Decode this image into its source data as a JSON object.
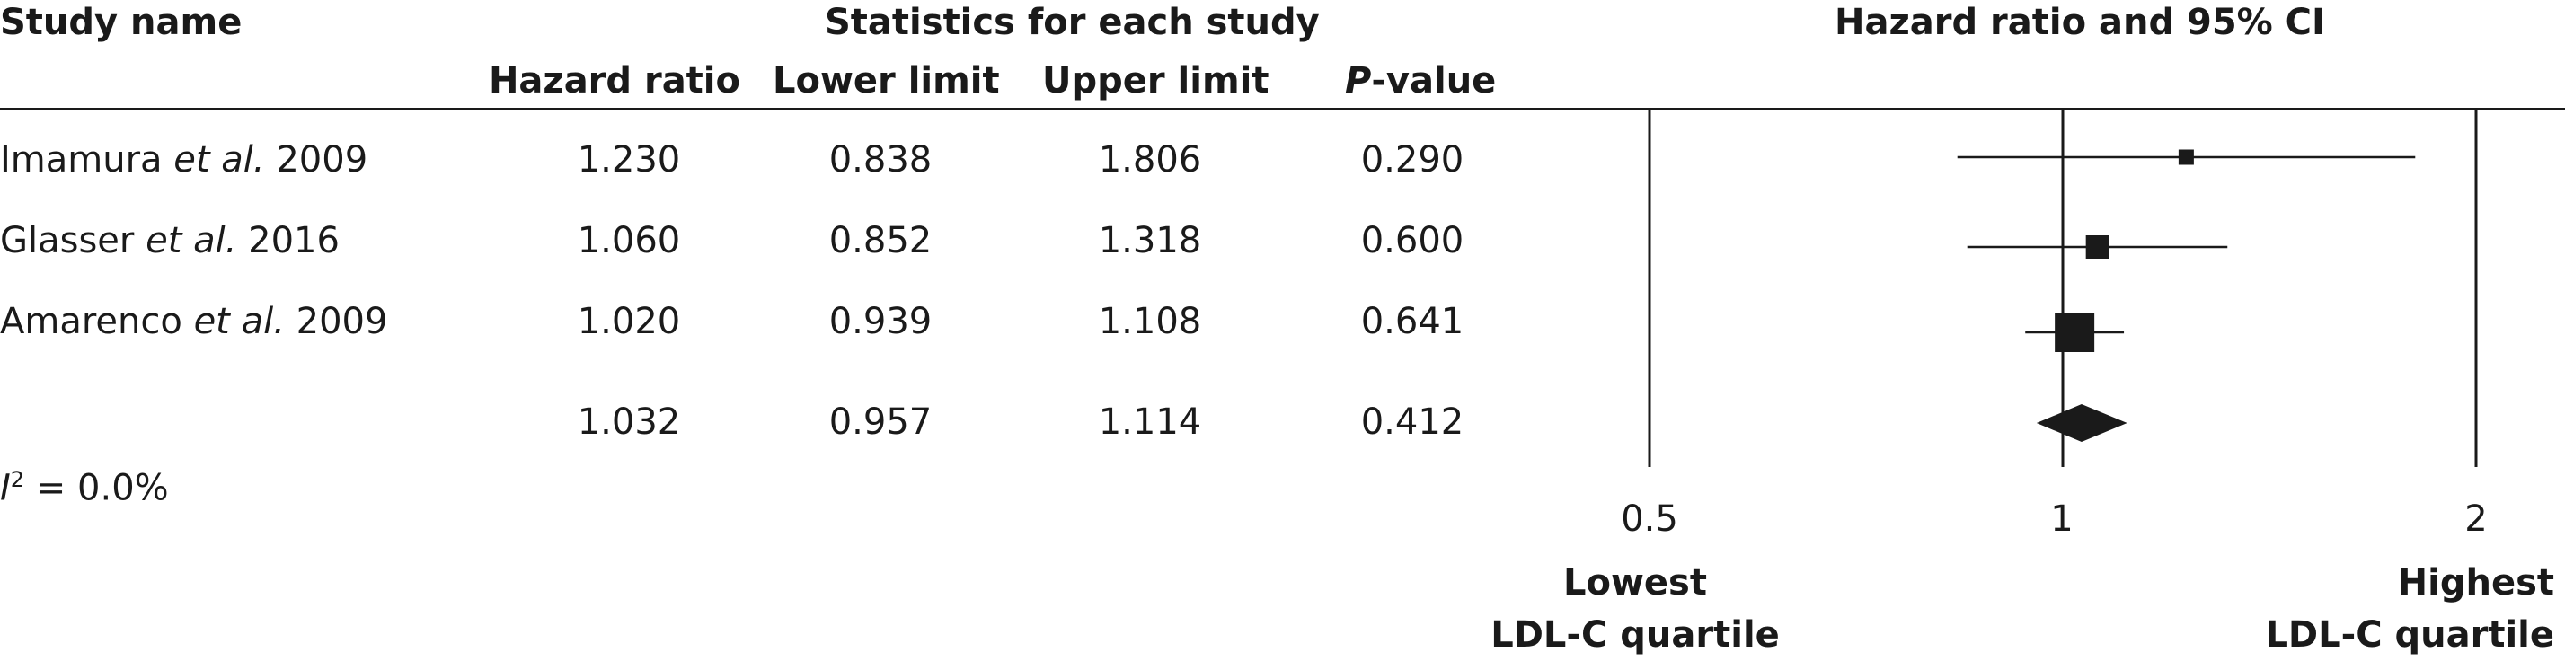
{
  "headers": {
    "study_name": "Study name",
    "stats_group": "Statistics for each study",
    "plot_title": "Hazard ratio and 95% CI",
    "hazard_ratio": "Hazard ratio",
    "lower_limit": "Lower limit",
    "upper_limit": "Upper limit",
    "p_value_italic": "P",
    "p_value_rest": "-value"
  },
  "rows": [
    {
      "author": "Imamura",
      "etal": "et al.",
      "year": "2009",
      "hr": "1.230",
      "lower": "0.838",
      "upper": "1.806",
      "p": "0.290"
    },
    {
      "author": "Glasser",
      "etal": "et al.",
      "year": "2016",
      "hr": "1.060",
      "lower": "0.852",
      "upper": "1.318",
      "p": "0.600"
    },
    {
      "author": "Amarenco",
      "etal": "et al.",
      "year": "2009",
      "hr": "1.020",
      "lower": "0.939",
      "upper": "1.108",
      "p": "0.641"
    }
  ],
  "summary": {
    "hr": "1.032",
    "lower": "0.957",
    "upper": "1.114",
    "p": "0.412"
  },
  "heterogeneity": {
    "symbol": "I",
    "superscript": "2",
    "value": " = 0.0%"
  },
  "axis": {
    "ticks": [
      "0.5",
      "1",
      "2"
    ],
    "left_label_1": "Lowest",
    "left_label_2": "LDL-C quartile",
    "right_label_1": "Highest",
    "right_label_2": "LDL-C quartile"
  },
  "chart_data": {
    "type": "forest",
    "title": "Hazard ratio and 95% CI",
    "x_scale": "log",
    "xlim": [
      0.5,
      2
    ],
    "reference_line": 1,
    "studies": [
      {
        "name": "Imamura et al. 2009",
        "hr": 1.23,
        "lower": 0.838,
        "upper": 1.806,
        "weight": 1
      },
      {
        "name": "Glasser et al. 2016",
        "hr": 1.06,
        "lower": 0.852,
        "upper": 1.318,
        "weight": 4
      },
      {
        "name": "Amarenco et al. 2009",
        "hr": 1.02,
        "lower": 0.939,
        "upper": 1.108,
        "weight": 16
      }
    ],
    "pooled": {
      "hr": 1.032,
      "lower": 0.957,
      "upper": 1.114
    },
    "colors": {
      "marker": "#1a1a1a"
    }
  }
}
